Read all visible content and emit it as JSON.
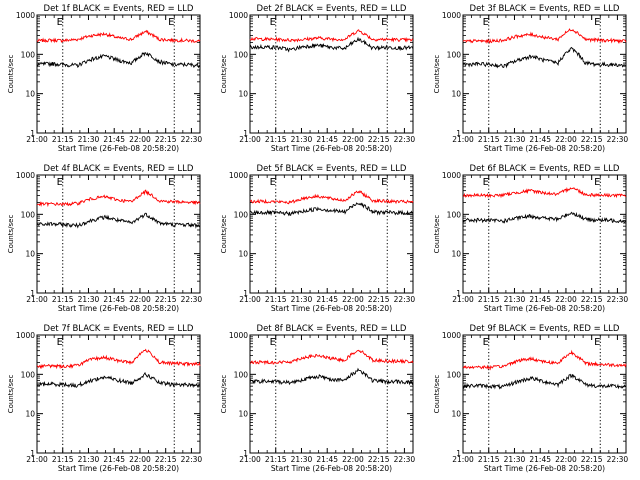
{
  "chart_data": {
    "type": "line",
    "layout": "3x3 grid of panels",
    "yscale": "log",
    "ylim": [
      1,
      1000
    ],
    "ytick_labels": [
      "1",
      "10",
      "100",
      "1000"
    ],
    "ylabel": "Counts/sec",
    "xlabel": "Start Time (26-Feb-08 20:58:20)",
    "xlim_minutes": [
      0,
      95
    ],
    "xtick_labels": [
      "21:00",
      "21:15",
      "21:30",
      "21:45",
      "22:00",
      "22:15",
      "22:30"
    ],
    "series_colors": {
      "events": "#000000",
      "lld": "#ff0000"
    },
    "panels": [
      {
        "title": "Det 1f BLACK = Events, RED = LLD",
        "events": [
          55,
          58,
          55,
          52,
          75,
          90,
          70,
          60,
          110,
          65,
          55,
          55,
          52
        ],
        "lld": [
          220,
          230,
          225,
          240,
          300,
          330,
          260,
          240,
          380,
          240,
          230,
          225,
          215
        ],
        "markers": [
          15,
          80
        ],
        "marker_labels": [
          "E",
          "E"
        ]
      },
      {
        "title": "Det 2f BLACK = Events, RED = LLD",
        "events": [
          150,
          155,
          150,
          130,
          160,
          170,
          150,
          140,
          240,
          145,
          150,
          148,
          145
        ],
        "lld": [
          250,
          245,
          240,
          230,
          240,
          260,
          245,
          240,
          400,
          240,
          240,
          235,
          230
        ],
        "markers": [
          15,
          80
        ],
        "marker_labels": [
          "E",
          "E"
        ]
      },
      {
        "title": "Det 3f BLACK = Events, RED = LLD",
        "events": [
          55,
          57,
          55,
          50,
          70,
          90,
          70,
          60,
          140,
          60,
          55,
          55,
          52
        ],
        "lld": [
          210,
          220,
          215,
          230,
          290,
          320,
          270,
          240,
          440,
          240,
          230,
          225,
          215
        ],
        "markers": [
          15,
          80
        ],
        "marker_labels": [
          "E",
          "E"
        ]
      },
      {
        "title": "Det 4f BLACK = Events, RED = LLD",
        "events": [
          55,
          57,
          55,
          52,
          70,
          85,
          70,
          60,
          100,
          60,
          55,
          55,
          52
        ],
        "lld": [
          180,
          185,
          180,
          190,
          250,
          280,
          230,
          210,
          380,
          220,
          210,
          205,
          195
        ],
        "markers": [
          15,
          80
        ],
        "marker_labels": [
          "E",
          "E"
        ]
      },
      {
        "title": "Det 5f BLACK = Events, RED = LLD",
        "events": [
          110,
          112,
          108,
          105,
          120,
          140,
          125,
          115,
          200,
          115,
          112,
          110,
          108
        ],
        "lld": [
          210,
          215,
          210,
          200,
          260,
          290,
          250,
          225,
          380,
          225,
          215,
          210,
          205
        ],
        "markers": [
          15,
          80
        ],
        "marker_labels": [
          "E",
          "E"
        ]
      },
      {
        "title": "Det 6f BLACK = Events, RED = LLD",
        "events": [
          70,
          72,
          70,
          68,
          80,
          90,
          80,
          75,
          110,
          75,
          72,
          70,
          68
        ],
        "lld": [
          300,
          305,
          300,
          310,
          360,
          400,
          350,
          320,
          480,
          320,
          310,
          305,
          300
        ],
        "markers": [
          15,
          80
        ],
        "marker_labels": [
          "E",
          "E"
        ]
      },
      {
        "title": "Det 7f BLACK = Events, RED = LLD",
        "events": [
          55,
          57,
          55,
          52,
          70,
          85,
          70,
          60,
          100,
          60,
          55,
          55,
          52
        ],
        "lld": [
          160,
          165,
          160,
          170,
          240,
          270,
          220,
          200,
          420,
          200,
          190,
          185,
          180
        ],
        "markers": [
          15,
          80
        ],
        "marker_labels": [
          "E",
          "E"
        ]
      },
      {
        "title": "Det 8f BLACK = Events, RED = LLD",
        "events": [
          65,
          67,
          65,
          62,
          75,
          90,
          75,
          70,
          130,
          70,
          65,
          65,
          62
        ],
        "lld": [
          200,
          205,
          200,
          210,
          270,
          300,
          250,
          230,
          420,
          230,
          220,
          215,
          210
        ],
        "markers": [
          15,
          80
        ],
        "marker_labels": [
          "E",
          "E"
        ]
      },
      {
        "title": "Det 9f BLACK = Events, RED = LLD",
        "events": [
          50,
          52,
          50,
          48,
          65,
          80,
          65,
          55,
          95,
          55,
          50,
          50,
          48
        ],
        "lld": [
          150,
          155,
          150,
          160,
          220,
          250,
          210,
          190,
          360,
          190,
          180,
          175,
          170
        ],
        "markers": [
          15,
          80
        ],
        "marker_labels": [
          "E",
          "E"
        ]
      }
    ]
  }
}
